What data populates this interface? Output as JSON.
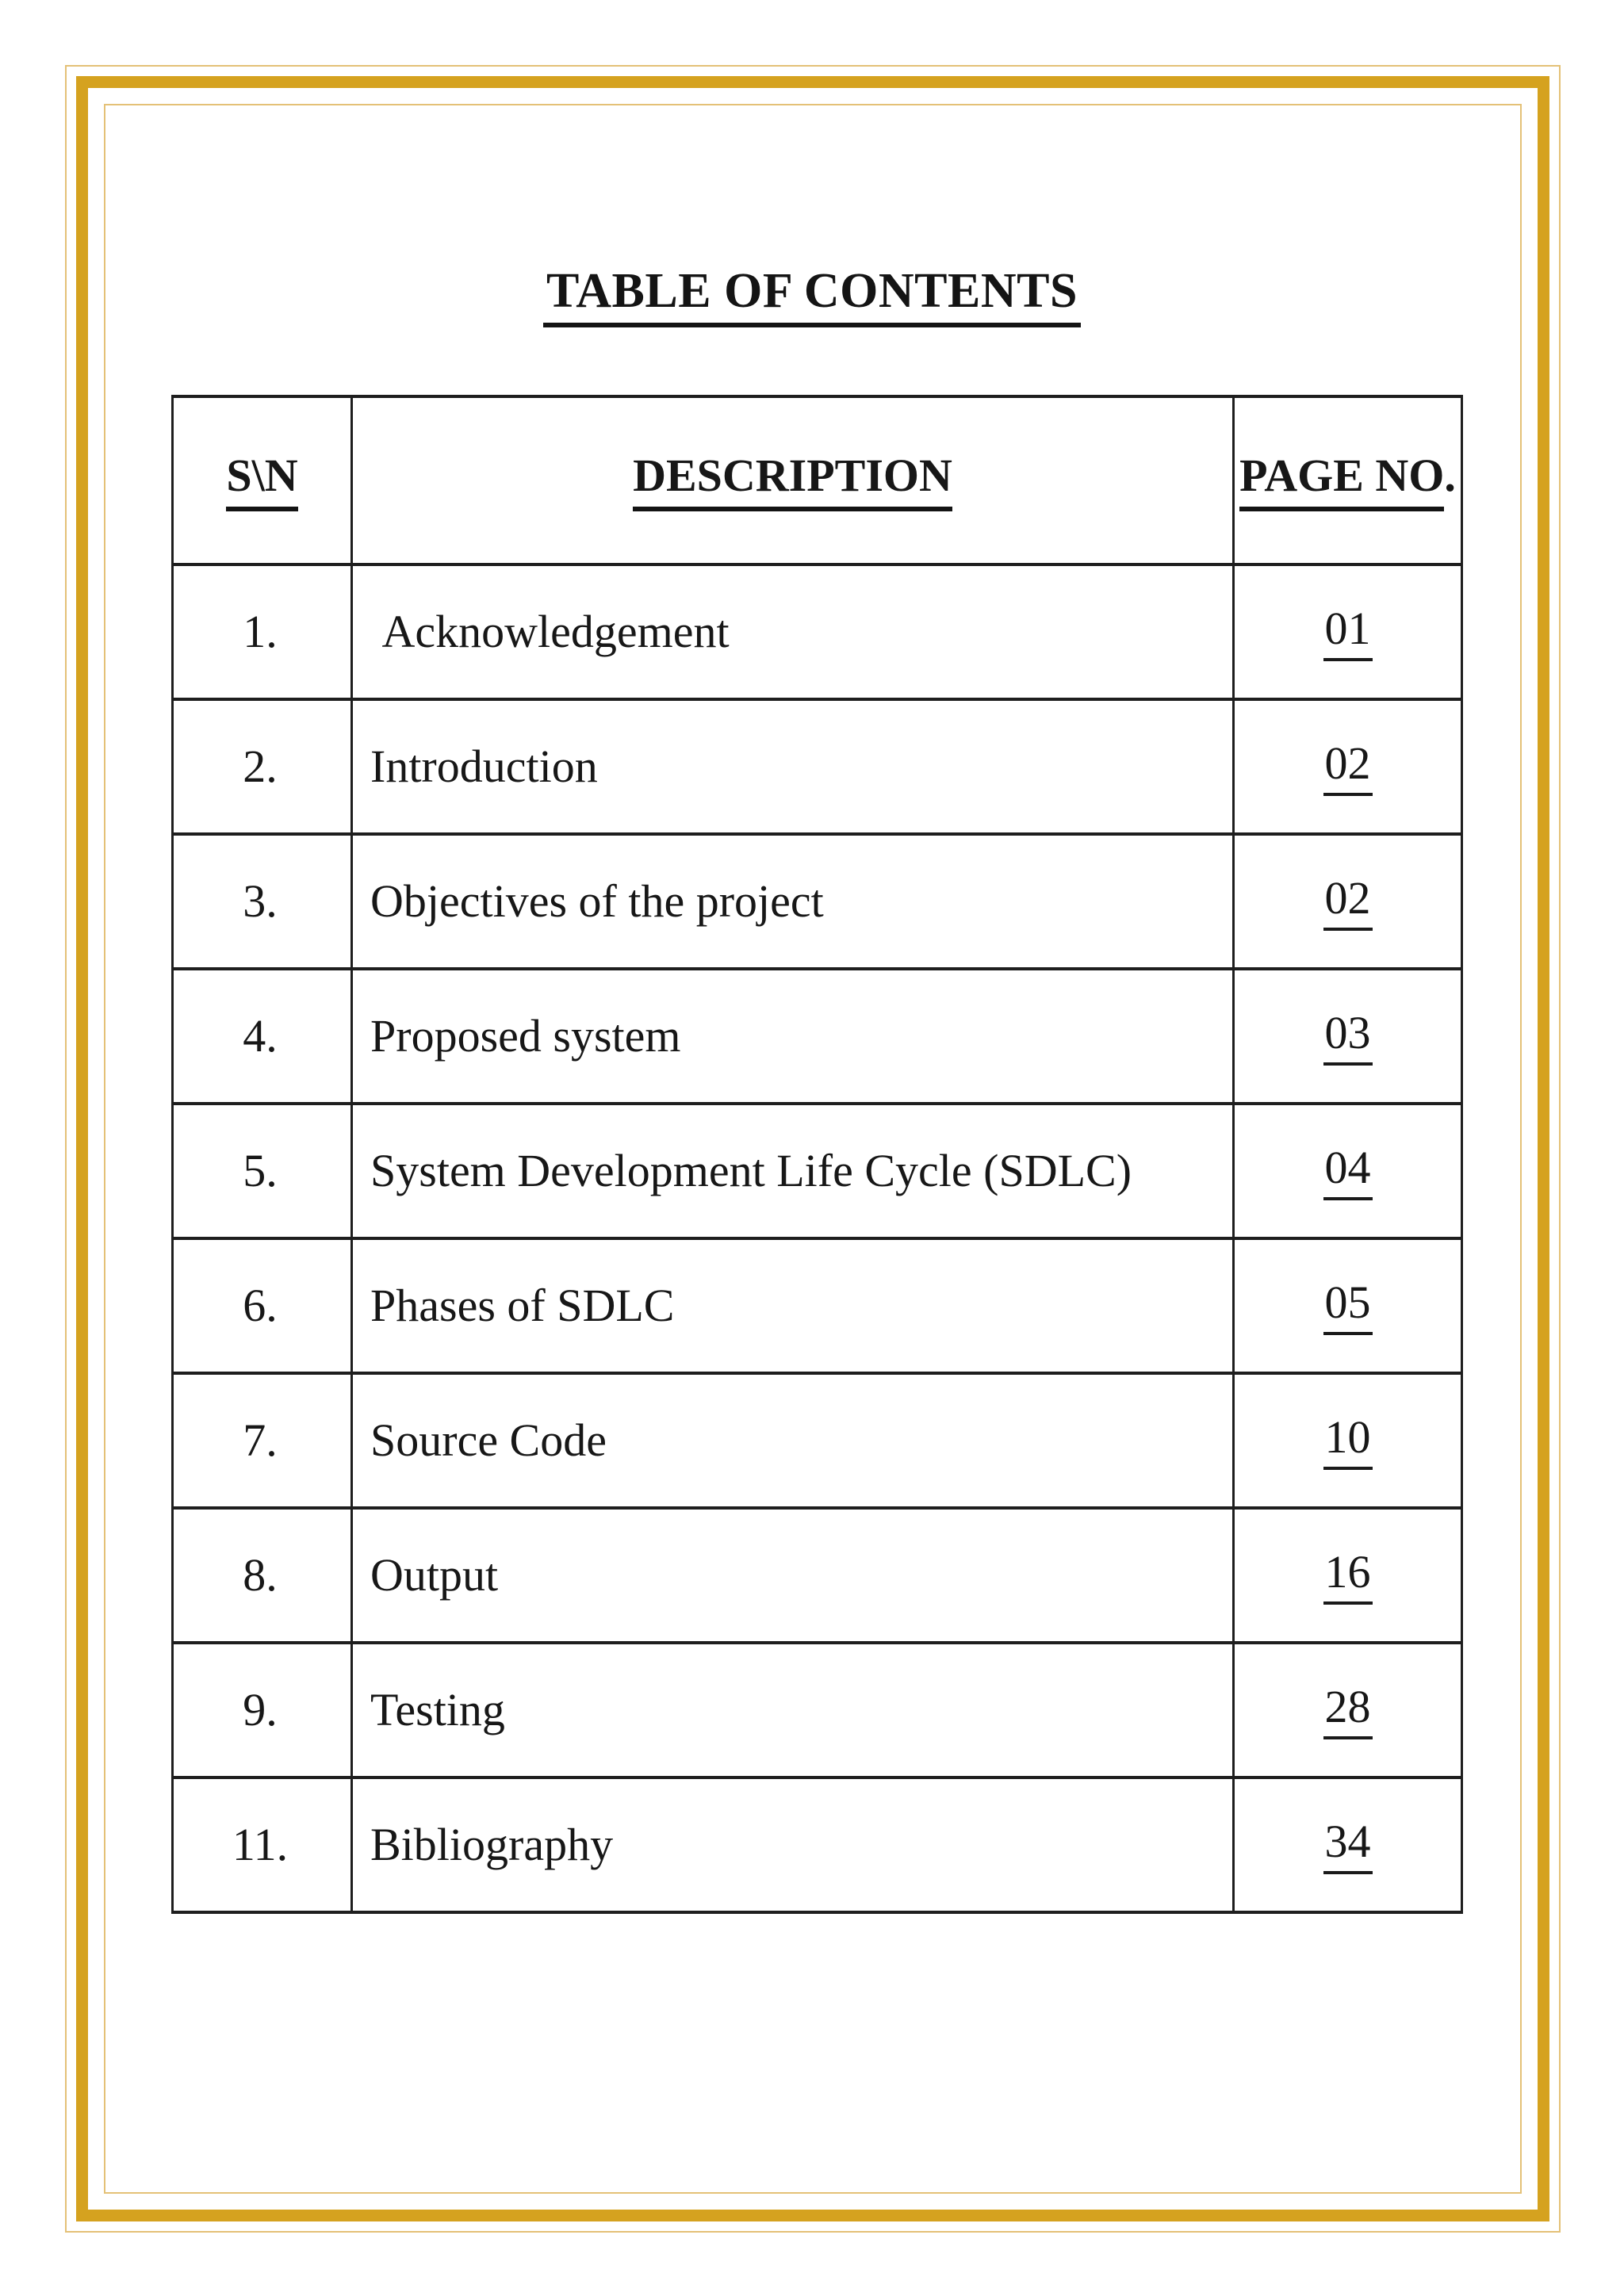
{
  "document": {
    "title": "TABLE OF CONTENTS"
  },
  "frame": {
    "band_color": "#d5a21f",
    "thin_line_color": "#e4c177"
  },
  "table": {
    "headers": {
      "sn": "S\\N",
      "description": "DESCRIPTION",
      "page_no": "PAGE NO",
      "page_no_suffix": "."
    },
    "rows": [
      {
        "sn": "1.",
        "description": " Acknowledgement",
        "page": "01"
      },
      {
        "sn": "2.",
        "description": "Introduction",
        "page": "02"
      },
      {
        "sn": "3.",
        "description": "Objectives of the project",
        "page": "02"
      },
      {
        "sn": "4.",
        "description": "Proposed system",
        "page": "03"
      },
      {
        "sn": "5.",
        "description": "System Development Life Cycle (SDLC)",
        "page": "04"
      },
      {
        "sn": "6.",
        "description": "Phases of SDLC",
        "page": "05"
      },
      {
        "sn": "7.",
        "description": "Source Code",
        "page": "10"
      },
      {
        "sn": "8.",
        "description": "Output",
        "page": "16"
      },
      {
        "sn": "9.",
        "description": "Testing",
        "page": "28"
      },
      {
        "sn": "11.",
        "description": "Bibliography",
        "page": "34"
      }
    ]
  }
}
